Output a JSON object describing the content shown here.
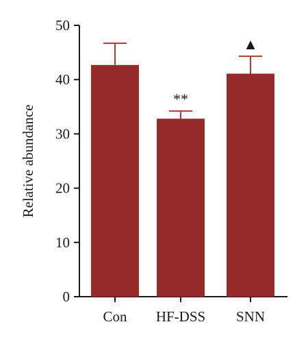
{
  "chart_data": {
    "type": "bar",
    "title": "",
    "xlabel": "",
    "ylabel": "Relative abundance",
    "ylim": [
      0,
      50
    ],
    "yticks": [
      "0",
      "10",
      "20",
      "30",
      "40",
      "50"
    ],
    "categories": [
      "Con",
      "HF-DSS",
      "SNN"
    ],
    "values": [
      42.7,
      32.8,
      41.1
    ],
    "errors": [
      4.0,
      1.4,
      3.2
    ],
    "annotations": [
      "",
      "**",
      "▲"
    ],
    "grid": false,
    "legend": "none"
  },
  "colors": {
    "bar": "#942a2a",
    "error_bar": "#b03a30",
    "axis": "#1a1a1a",
    "text": "#1a1a1a"
  }
}
